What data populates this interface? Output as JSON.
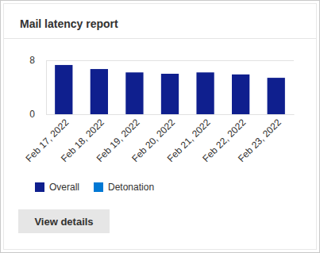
{
  "chart_data": {
    "type": "bar",
    "title": "Mail latency report",
    "categories": [
      "Feb 17, 2022",
      "Feb 18, 2022",
      "Feb 19, 2022",
      "Feb 20, 2022",
      "Feb 21, 2022",
      "Feb 22, 2022",
      "Feb 23, 2022"
    ],
    "series": [
      {
        "name": "Overall",
        "color": "#0f1f8e",
        "values": [
          7.3,
          6.7,
          6.2,
          6.0,
          6.2,
          5.9,
          5.4
        ]
      },
      {
        "name": "Detonation",
        "color": "#0078d4",
        "values": [
          null,
          null,
          null,
          null,
          null,
          null,
          null
        ]
      }
    ],
    "ylim": [
      0,
      8
    ],
    "yticks": [
      0,
      8
    ],
    "grid": true,
    "stacked": true,
    "legend": "bottom-left"
  },
  "button": "View details"
}
